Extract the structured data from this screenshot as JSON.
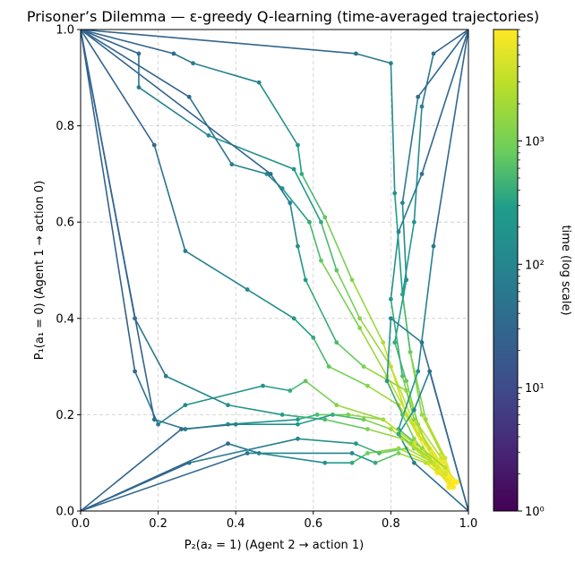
{
  "chart_data": {
    "type": "line",
    "title": "Prisoner’s Dilemma — ε-greedy Q-learning (time-averaged trajectories)",
    "xlabel": "P₂(a₂ = 1)  (Agent 2 → action 1)",
    "ylabel": "P₁(a₁ = 0)  (Agent 1 → action 0)",
    "xlim": [
      0.0,
      1.0
    ],
    "ylim": [
      0.0,
      1.0
    ],
    "x_ticks": [
      "0.0",
      "0.2",
      "0.4",
      "0.6",
      "0.8",
      "1.0"
    ],
    "y_ticks": [
      "0.0",
      "0.2",
      "0.4",
      "0.6",
      "0.8",
      "1.0"
    ],
    "grid": true,
    "colorbar": {
      "label": "time (log scale)",
      "scale": "log",
      "colormap": "viridis",
      "range": [
        1,
        8000
      ],
      "tick_labels": [
        "10⁰",
        "10¹",
        "10²",
        "10³"
      ]
    },
    "series": [
      {
        "x": [
          0.0,
          0.15,
          0.15,
          0.33,
          0.55,
          0.62,
          0.66,
          0.72,
          0.8,
          0.86,
          0.93
        ],
        "y": [
          1.0,
          0.95,
          0.88,
          0.78,
          0.71,
          0.6,
          0.5,
          0.4,
          0.3,
          0.18,
          0.1
        ]
      },
      {
        "x": [
          0.0,
          0.24,
          0.29,
          0.46,
          0.56,
          0.57,
          0.63,
          0.7,
          0.78,
          0.84,
          0.92
        ],
        "y": [
          1.0,
          0.95,
          0.93,
          0.89,
          0.76,
          0.7,
          0.61,
          0.48,
          0.35,
          0.2,
          0.08
        ]
      },
      {
        "x": [
          0.0,
          0.28,
          0.39,
          0.48,
          0.52,
          0.59,
          0.62,
          0.72,
          0.79,
          0.87,
          0.95
        ],
        "y": [
          1.0,
          0.86,
          0.72,
          0.7,
          0.67,
          0.6,
          0.52,
          0.38,
          0.28,
          0.16,
          0.06
        ]
      },
      {
        "x": [
          0.0,
          0.19,
          0.27,
          0.43,
          0.55,
          0.6,
          0.64,
          0.74,
          0.82,
          0.88,
          0.95
        ],
        "y": [
          1.0,
          0.76,
          0.54,
          0.46,
          0.4,
          0.36,
          0.3,
          0.26,
          0.22,
          0.15,
          0.05
        ]
      },
      {
        "x": [
          0.0,
          0.49,
          0.54,
          0.56,
          0.58,
          0.66,
          0.73,
          0.84,
          0.89,
          0.95
        ],
        "y": [
          1.0,
          0.7,
          0.64,
          0.55,
          0.48,
          0.35,
          0.3,
          0.25,
          0.14,
          0.06
        ]
      },
      {
        "x": [
          0.0,
          0.71,
          0.8,
          0.81,
          0.83,
          0.85,
          0.88,
          0.93,
          0.96
        ],
        "y": [
          1.0,
          0.95,
          0.93,
          0.66,
          0.45,
          0.33,
          0.2,
          0.12,
          0.06
        ]
      },
      {
        "x": [
          1.0,
          0.91,
          0.88,
          0.86,
          0.83,
          0.85,
          0.89,
          0.94,
          0.96
        ],
        "y": [
          1.0,
          0.95,
          0.84,
          0.6,
          0.45,
          0.33,
          0.19,
          0.11,
          0.06
        ]
      },
      {
        "x": [
          1.0,
          0.87,
          0.83,
          0.84,
          0.81,
          0.84,
          0.87,
          0.93,
          0.96
        ],
        "y": [
          1.0,
          0.86,
          0.64,
          0.48,
          0.35,
          0.27,
          0.18,
          0.11,
          0.05
        ]
      },
      {
        "x": [
          1.0,
          0.88,
          0.82,
          0.8,
          0.83,
          0.86,
          0.9,
          0.95
        ],
        "y": [
          1.0,
          0.7,
          0.58,
          0.44,
          0.28,
          0.19,
          0.13,
          0.07
        ]
      },
      {
        "x": [
          1.0,
          0.91,
          0.87,
          0.82,
          0.88,
          0.94,
          0.97
        ],
        "y": [
          1.0,
          0.55,
          0.29,
          0.17,
          0.13,
          0.09,
          0.06
        ]
      },
      {
        "x": [
          0.0,
          0.14,
          0.2,
          0.27,
          0.47,
          0.54,
          0.58,
          0.66,
          0.78,
          0.86,
          0.93
        ],
        "y": [
          1.0,
          0.29,
          0.18,
          0.22,
          0.26,
          0.25,
          0.27,
          0.22,
          0.19,
          0.14,
          0.08
        ]
      },
      {
        "x": [
          0.0,
          0.19,
          0.27,
          0.38,
          0.56,
          0.61,
          0.69,
          0.78,
          0.86,
          0.94
        ],
        "y": [
          1.0,
          0.19,
          0.17,
          0.18,
          0.19,
          0.2,
          0.2,
          0.19,
          0.14,
          0.07
        ]
      },
      {
        "x": [
          0.0,
          0.26,
          0.4,
          0.56,
          0.65,
          0.73,
          0.8,
          0.88,
          0.95
        ],
        "y": [
          0.0,
          0.17,
          0.18,
          0.18,
          0.2,
          0.19,
          0.17,
          0.12,
          0.06
        ]
      },
      {
        "x": [
          0.0,
          0.38,
          0.46,
          0.63,
          0.7,
          0.74,
          0.82,
          0.9,
          0.96
        ],
        "y": [
          0.0,
          0.14,
          0.12,
          0.1,
          0.1,
          0.12,
          0.13,
          0.1,
          0.05
        ]
      },
      {
        "x": [
          0.0,
          0.28,
          0.56,
          0.71,
          0.77,
          0.84,
          0.91,
          0.96
        ],
        "y": [
          0.0,
          0.1,
          0.15,
          0.14,
          0.12,
          0.13,
          0.1,
          0.05
        ]
      },
      {
        "x": [
          0.0,
          0.43,
          0.7,
          0.76,
          0.82,
          0.89,
          0.95
        ],
        "y": [
          0.0,
          0.12,
          0.12,
          0.1,
          0.12,
          0.1,
          0.06
        ]
      },
      {
        "x": [
          1.0,
          0.86,
          0.82,
          0.86,
          0.92,
          0.96
        ],
        "y": [
          0.0,
          0.1,
          0.16,
          0.13,
          0.09,
          0.06
        ]
      },
      {
        "x": [
          1.0,
          0.9,
          0.86,
          0.82,
          0.85,
          0.9,
          0.95
        ],
        "y": [
          0.0,
          0.29,
          0.21,
          0.16,
          0.14,
          0.11,
          0.07
        ]
      },
      {
        "x": [
          1.0,
          0.88,
          0.8,
          0.79,
          0.83,
          0.86,
          0.91,
          0.96
        ],
        "y": [
          0.0,
          0.35,
          0.4,
          0.27,
          0.2,
          0.15,
          0.1,
          0.05
        ]
      },
      {
        "x": [
          0.0,
          0.14,
          0.22,
          0.38,
          0.52,
          0.63,
          0.74,
          0.83,
          0.92,
          0.96
        ],
        "y": [
          1.0,
          0.4,
          0.28,
          0.22,
          0.2,
          0.19,
          0.17,
          0.15,
          0.09,
          0.05
        ]
      }
    ]
  }
}
